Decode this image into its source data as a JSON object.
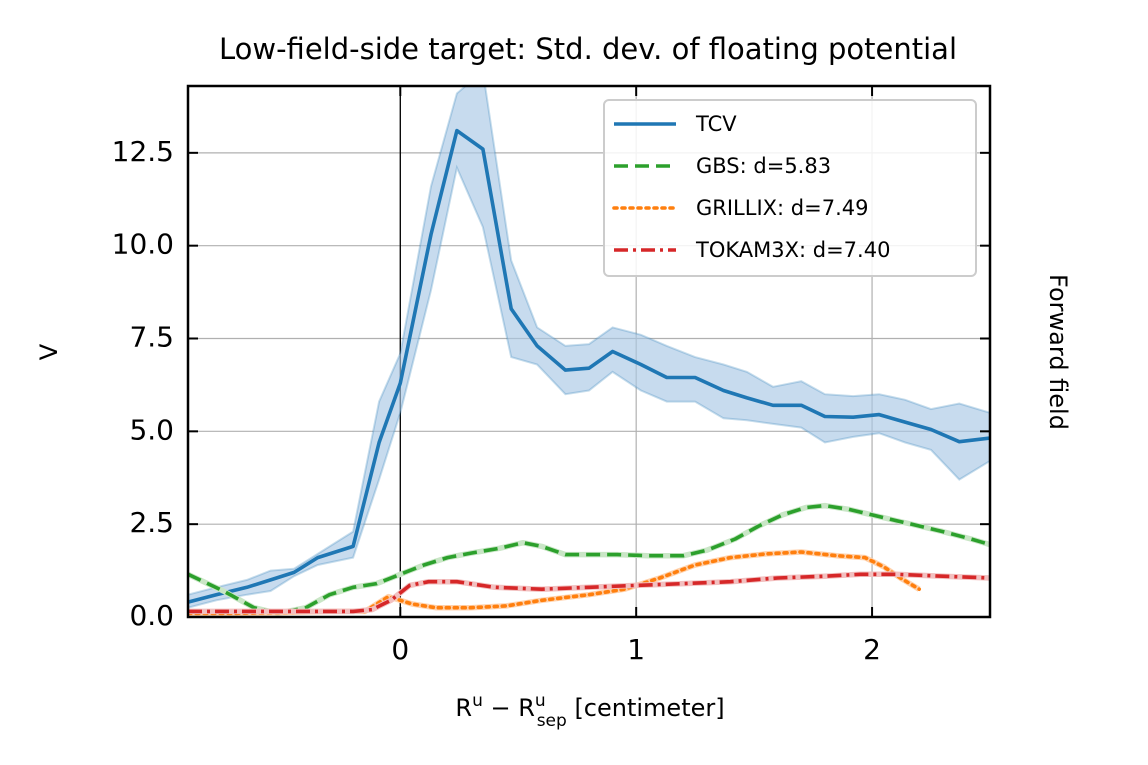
{
  "chart_data": {
    "type": "line",
    "title": "Low-field-side target: Std. dev. of floating potential",
    "xlabel": {
      "base": "R",
      "sup1": "u",
      "minus": " − ",
      "base2": "R",
      "sup2": "u",
      "sub2": "sep",
      "unit": " [centimeter]"
    },
    "ylabel": "V",
    "side_label": "Forward field",
    "xlim": [
      -0.9,
      2.5
    ],
    "ylim": [
      0,
      14.3
    ],
    "xticks": [
      0,
      1,
      2
    ],
    "xtick_labels": [
      "0",
      "1",
      "2"
    ],
    "yticks": [
      0,
      2.5,
      5,
      7.5,
      10,
      12.5
    ],
    "ytick_labels": [
      "0.0",
      "2.5",
      "5.0",
      "7.5",
      "10.0",
      "12.5"
    ],
    "grid": true,
    "vline_x": 0,
    "legend_placement": "top-right",
    "series": [
      {
        "name": "TCV",
        "color": "#1f77b4",
        "style": "solid",
        "band_color": "#a9c8e5",
        "x": [
          -0.9,
          -0.78,
          -0.65,
          -0.55,
          -0.45,
          -0.35,
          -0.2,
          -0.09,
          0.0,
          0.13,
          0.24,
          0.35,
          0.47,
          0.58,
          0.7,
          0.8,
          0.9,
          1.02,
          1.13,
          1.25,
          1.37,
          1.47,
          1.58,
          1.7,
          1.8,
          1.92,
          2.03,
          2.14,
          2.25,
          2.37,
          2.5
        ],
        "values": [
          0.4,
          0.6,
          0.8,
          1.0,
          1.2,
          1.6,
          1.9,
          4.7,
          6.3,
          10.3,
          13.1,
          12.6,
          8.3,
          7.3,
          6.65,
          6.7,
          7.15,
          6.8,
          6.45,
          6.45,
          6.1,
          5.9,
          5.7,
          5.7,
          5.4,
          5.38,
          5.45,
          5.25,
          5.05,
          4.72,
          4.82
        ],
        "upper": [
          0.6,
          0.8,
          1.0,
          1.25,
          1.3,
          1.7,
          2.3,
          5.8,
          7.1,
          11.6,
          14.1,
          14.7,
          9.6,
          7.8,
          7.3,
          7.35,
          7.8,
          7.6,
          7.3,
          7.0,
          6.8,
          6.6,
          6.2,
          6.35,
          6.0,
          5.95,
          6.0,
          5.85,
          5.6,
          5.75,
          5.5
        ],
        "lower": [
          0.25,
          0.45,
          0.6,
          0.7,
          1.1,
          1.4,
          1.6,
          3.7,
          5.5,
          8.8,
          12.1,
          10.5,
          7.0,
          6.8,
          6.0,
          6.1,
          6.6,
          6.1,
          5.8,
          5.8,
          5.35,
          5.3,
          5.2,
          5.1,
          4.7,
          4.85,
          4.95,
          4.7,
          4.5,
          3.7,
          4.2
        ]
      },
      {
        "name": "GBS: d=5.83",
        "color": "#2ca02c",
        "style": "dashed",
        "shadow_color": "#c9e6c6",
        "x": [
          -0.9,
          -0.75,
          -0.62,
          -0.52,
          -0.4,
          -0.3,
          -0.2,
          -0.1,
          0.0,
          0.1,
          0.2,
          0.3,
          0.42,
          0.52,
          0.6,
          0.7,
          0.8,
          0.92,
          1.05,
          1.2,
          1.3,
          1.42,
          1.52,
          1.62,
          1.72,
          1.8,
          1.9,
          2.0,
          2.1,
          2.2,
          2.3,
          2.42,
          2.5
        ],
        "values": [
          1.15,
          0.7,
          0.25,
          0.1,
          0.25,
          0.6,
          0.8,
          0.9,
          1.15,
          1.4,
          1.6,
          1.72,
          1.85,
          2.0,
          1.9,
          1.68,
          1.68,
          1.68,
          1.65,
          1.65,
          1.8,
          2.1,
          2.45,
          2.75,
          2.95,
          3.0,
          2.9,
          2.75,
          2.6,
          2.45,
          2.3,
          2.1,
          1.95
        ]
      },
      {
        "name": "GRILLIX: d=7.49",
        "color": "#ff7f0e",
        "style": "dotted",
        "shadow_color": "#ffd2ad",
        "x": [
          -0.9,
          -0.7,
          -0.5,
          -0.3,
          -0.15,
          -0.05,
          0.05,
          0.15,
          0.3,
          0.45,
          0.6,
          0.8,
          0.95,
          1.1,
          1.25,
          1.4,
          1.55,
          1.7,
          1.85,
          1.97,
          2.05,
          2.12,
          2.2
        ],
        "values": [
          0.1,
          0.1,
          0.12,
          0.15,
          0.15,
          0.55,
          0.35,
          0.25,
          0.25,
          0.3,
          0.45,
          0.6,
          0.75,
          1.05,
          1.4,
          1.6,
          1.7,
          1.75,
          1.65,
          1.6,
          1.35,
          1.05,
          0.75
        ]
      },
      {
        "name": "TOKAM3X: d=7.40",
        "color": "#d62728",
        "style": "dashdot",
        "shadow_color": "#f2c0c0",
        "x": [
          -0.9,
          -0.6,
          -0.4,
          -0.2,
          -0.12,
          -0.04,
          0.04,
          0.12,
          0.24,
          0.4,
          0.6,
          0.8,
          1.0,
          1.2,
          1.4,
          1.6,
          1.8,
          1.95,
          2.1,
          2.3,
          2.5
        ],
        "values": [
          0.15,
          0.15,
          0.15,
          0.15,
          0.2,
          0.45,
          0.85,
          0.95,
          0.95,
          0.8,
          0.75,
          0.8,
          0.85,
          0.9,
          0.95,
          1.05,
          1.1,
          1.15,
          1.15,
          1.1,
          1.05
        ]
      }
    ]
  }
}
